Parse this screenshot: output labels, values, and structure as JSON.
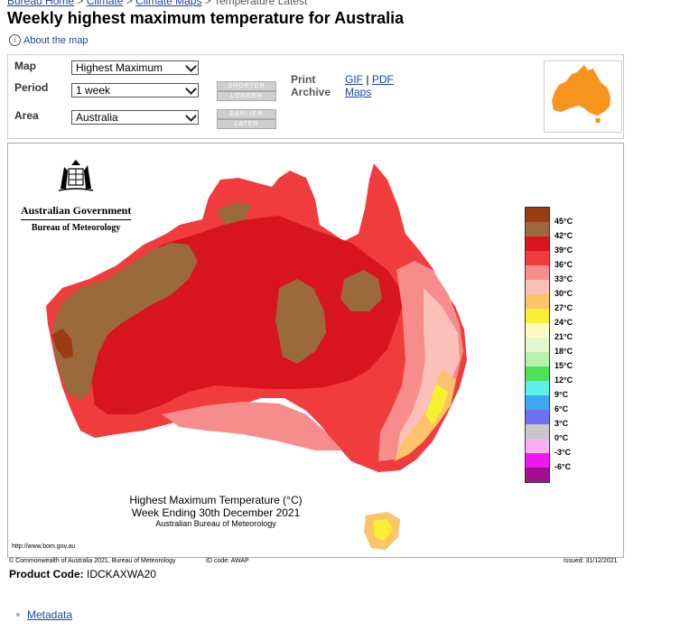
{
  "breadcrumbs": [
    "Bureau Home",
    "Climate",
    "Climate Maps",
    "Temperature Latest"
  ],
  "page_title": "Weekly highest maximum temperature for Australia",
  "about_link": "About the map",
  "controls": {
    "map_label": "Map",
    "map_value": "Highest Maximum",
    "period_label": "Period",
    "period_value": "1 week",
    "area_label": "Area",
    "area_value": "Australia",
    "shorter": "SHORTER",
    "longer": "LONGER",
    "earlier": "EARLIER",
    "later": "LATER",
    "print_label": "Print",
    "archive_label": "Archive",
    "gif_link": "GIF",
    "pdf_link": "PDF",
    "maps_link": "Maps",
    "separator": "|"
  },
  "map": {
    "govt_line1": "Australian Government",
    "govt_line2": "Bureau of Meteorology",
    "caption_line1": "Highest Maximum Temperature (°C)",
    "caption_line2": "Week Ending 30th December 2021",
    "caption_line3": "Australian Bureau of Meteorology",
    "url": "http://www.bom.gov.au",
    "legend": [
      {
        "label": "45°C",
        "color": "#9a3c14"
      },
      {
        "label": "42°C",
        "color": "#9a6a3c"
      },
      {
        "label": "39°C",
        "color": "#d8141e"
      },
      {
        "label": "36°C",
        "color": "#f03c3c"
      },
      {
        "label": "33°C",
        "color": "#f68c8c"
      },
      {
        "label": "30°C",
        "color": "#fbc0b8"
      },
      {
        "label": "27°C",
        "color": "#fbc46a"
      },
      {
        "label": "24°C",
        "color": "#f7f032"
      },
      {
        "label": "21°C",
        "color": "#fbfac0"
      },
      {
        "label": "18°C",
        "color": "#e0f7d0"
      },
      {
        "label": "15°C",
        "color": "#b8f0b0"
      },
      {
        "label": "12°C",
        "color": "#4ce05a"
      },
      {
        "label": "9°C",
        "color": "#5ef0e8"
      },
      {
        "label": "6°C",
        "color": "#3ca8f0"
      },
      {
        "label": "3°C",
        "color": "#7070f0"
      },
      {
        "label": "0°C",
        "color": "#c8c8c8"
      },
      {
        "label": "-3°C",
        "color": "#f8b0f0"
      },
      {
        "label": "-6°C",
        "color": "#f018f0"
      },
      {
        "label": "",
        "color": "#a01090"
      }
    ]
  },
  "footer": {
    "copyright": "© Commonwealth of Australia 2021, Bureau of Meteorology",
    "id_code": "ID code: AWAP",
    "issued": "Issued: 31/12/2021"
  },
  "product_label": "Product Code:",
  "product_code": "IDCKAXWA20",
  "metadata_link": "Metadata",
  "colors": {
    "link": "#1a46a6",
    "australia_orange": "#f7941d"
  }
}
